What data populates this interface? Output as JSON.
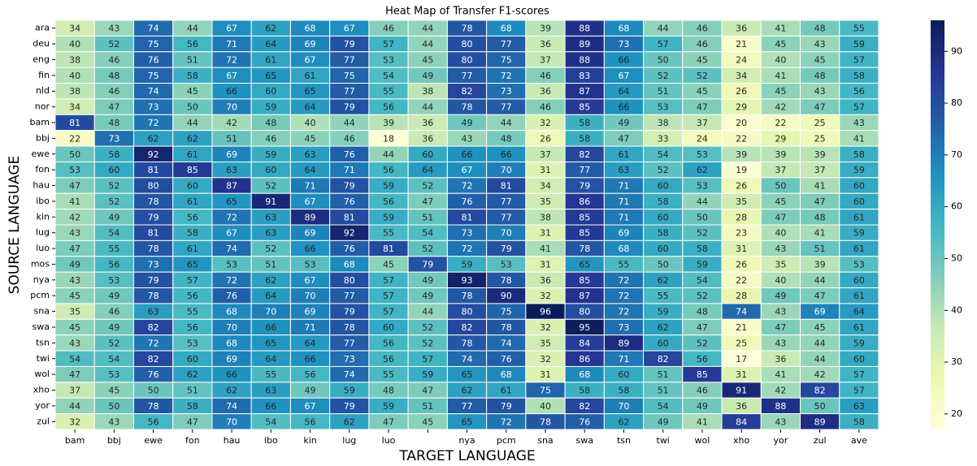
{
  "chart_data": {
    "type": "heatmap",
    "title": "Heat Map of Transfer F1-scores",
    "x_label": "TARGET LANGUAGE",
    "y_label": "SOURCE LANGUAGE",
    "categories": [
      "bam",
      "bbj",
      "ewe",
      "fon",
      "hau",
      "ibo",
      "kin",
      "lug",
      "luo",
      null,
      "nya",
      "pcm",
      "sna",
      "swa",
      "tsn",
      "twi",
      "wol",
      "xho",
      "yor",
      "zul",
      "ave"
    ],
    "rows": [
      "ara",
      "deu",
      "eng",
      "fin",
      "nld",
      "nor",
      "bam",
      "bbj",
      "ewe",
      "fon",
      "hau",
      "ibo",
      "kin",
      "lug",
      "luo",
      "mos",
      "nya",
      "pcm",
      "sna",
      "swa",
      "tsn",
      "twi",
      "wol",
      "xho",
      "yor",
      "zul"
    ],
    "values": [
      [
        34,
        43,
        74,
        44,
        67,
        62,
        68,
        67,
        46,
        44,
        78,
        68,
        39,
        88,
        68,
        44,
        46,
        36,
        41,
        48,
        55
      ],
      [
        40,
        52,
        75,
        56,
        71,
        64,
        69,
        79,
        57,
        44,
        80,
        77,
        36,
        89,
        73,
        57,
        46,
        21,
        45,
        43,
        59
      ],
      [
        38,
        46,
        76,
        51,
        72,
        61,
        67,
        77,
        53,
        45,
        80,
        75,
        37,
        88,
        66,
        50,
        45,
        24,
        40,
        45,
        57
      ],
      [
        40,
        48,
        75,
        58,
        67,
        65,
        61,
        75,
        54,
        49,
        77,
        72,
        46,
        83,
        67,
        52,
        52,
        34,
        41,
        48,
        58
      ],
      [
        38,
        46,
        74,
        45,
        66,
        60,
        65,
        77,
        55,
        38,
        82,
        73,
        36,
        87,
        64,
        51,
        45,
        26,
        45,
        43,
        56
      ],
      [
        34,
        47,
        73,
        50,
        70,
        59,
        64,
        79,
        56,
        44,
        78,
        77,
        46,
        85,
        66,
        53,
        47,
        29,
        42,
        47,
        57
      ],
      [
        81,
        48,
        72,
        44,
        42,
        48,
        40,
        44,
        39,
        36,
        49,
        44,
        32,
        58,
        49,
        38,
        37,
        20,
        22,
        25,
        43
      ],
      [
        22,
        73,
        62,
        62,
        51,
        46,
        45,
        46,
        18,
        36,
        43,
        48,
        26,
        58,
        47,
        33,
        24,
        22,
        29,
        25,
        41
      ],
      [
        50,
        58,
        92,
        61,
        69,
        59,
        63,
        76,
        44,
        60,
        66,
        66,
        37,
        82,
        61,
        54,
        53,
        39,
        39,
        39,
        58
      ],
      [
        53,
        60,
        81,
        85,
        63,
        60,
        64,
        71,
        56,
        64,
        67,
        70,
        31,
        77,
        63,
        52,
        62,
        19,
        37,
        37,
        59
      ],
      [
        47,
        52,
        80,
        60,
        87,
        52,
        71,
        79,
        59,
        52,
        72,
        81,
        34,
        79,
        71,
        60,
        53,
        26,
        50,
        41,
        60
      ],
      [
        41,
        52,
        78,
        61,
        65,
        91,
        67,
        76,
        56,
        47,
        76,
        77,
        35,
        86,
        71,
        58,
        44,
        35,
        45,
        47,
        60
      ],
      [
        42,
        49,
        79,
        56,
        72,
        63,
        89,
        81,
        59,
        51,
        81,
        77,
        38,
        85,
        71,
        60,
        50,
        28,
        47,
        48,
        61
      ],
      [
        43,
        54,
        81,
        58,
        67,
        63,
        69,
        92,
        55,
        54,
        73,
        70,
        31,
        85,
        69,
        58,
        52,
        23,
        40,
        41,
        59
      ],
      [
        47,
        55,
        78,
        61,
        74,
        52,
        66,
        76,
        81,
        52,
        72,
        79,
        41,
        78,
        68,
        60,
        58,
        31,
        43,
        51,
        61
      ],
      [
        49,
        56,
        73,
        65,
        53,
        51,
        53,
        68,
        45,
        79,
        59,
        53,
        31,
        65,
        55,
        50,
        59,
        26,
        35,
        39,
        53
      ],
      [
        43,
        53,
        79,
        57,
        72,
        62,
        67,
        80,
        57,
        49,
        93,
        78,
        36,
        85,
        72,
        62,
        54,
        22,
        40,
        44,
        60
      ],
      [
        45,
        49,
        78,
        56,
        76,
        64,
        70,
        77,
        57,
        49,
        78,
        90,
        32,
        87,
        72,
        55,
        52,
        28,
        49,
        47,
        61
      ],
      [
        35,
        46,
        63,
        55,
        68,
        70,
        69,
        79,
        57,
        44,
        80,
        75,
        96,
        80,
        72,
        59,
        48,
        74,
        43,
        69,
        64
      ],
      [
        45,
        49,
        82,
        56,
        70,
        66,
        71,
        78,
        60,
        52,
        82,
        78,
        32,
        95,
        73,
        62,
        47,
        21,
        47,
        45,
        61
      ],
      [
        43,
        52,
        72,
        53,
        68,
        65,
        64,
        77,
        56,
        52,
        78,
        74,
        35,
        84,
        89,
        60,
        52,
        25,
        43,
        44,
        59
      ],
      [
        54,
        54,
        82,
        60,
        69,
        64,
        66,
        73,
        56,
        57,
        74,
        76,
        32,
        86,
        71,
        82,
        56,
        17,
        36,
        44,
        60
      ],
      [
        47,
        53,
        76,
        62,
        66,
        55,
        56,
        74,
        55,
        59,
        65,
        68,
        31,
        68,
        60,
        51,
        85,
        31,
        41,
        42,
        57
      ],
      [
        37,
        45,
        50,
        51,
        62,
        63,
        49,
        59,
        48,
        47,
        62,
        61,
        75,
        58,
        58,
        51,
        46,
        91,
        42,
        82,
        57
      ],
      [
        44,
        50,
        78,
        58,
        74,
        66,
        67,
        79,
        59,
        51,
        77,
        79,
        40,
        82,
        70,
        54,
        49,
        36,
        88,
        50,
        63
      ],
      [
        32,
        43,
        56,
        47,
        70,
        54,
        56,
        62,
        47,
        45,
        65,
        72,
        78,
        76,
        62,
        49,
        41,
        84,
        43,
        89,
        58
      ]
    ],
    "zlim": [
      17,
      96
    ],
    "zticks": [
      20,
      30,
      40,
      50,
      60,
      70,
      80,
      90
    ],
    "colormap": [
      "#ffffd9",
      "#edf8b1",
      "#c7e9b4",
      "#7fcdbb",
      "#41b6c4",
      "#1d91c0",
      "#225ea8",
      "#253494",
      "#081d58"
    ]
  }
}
